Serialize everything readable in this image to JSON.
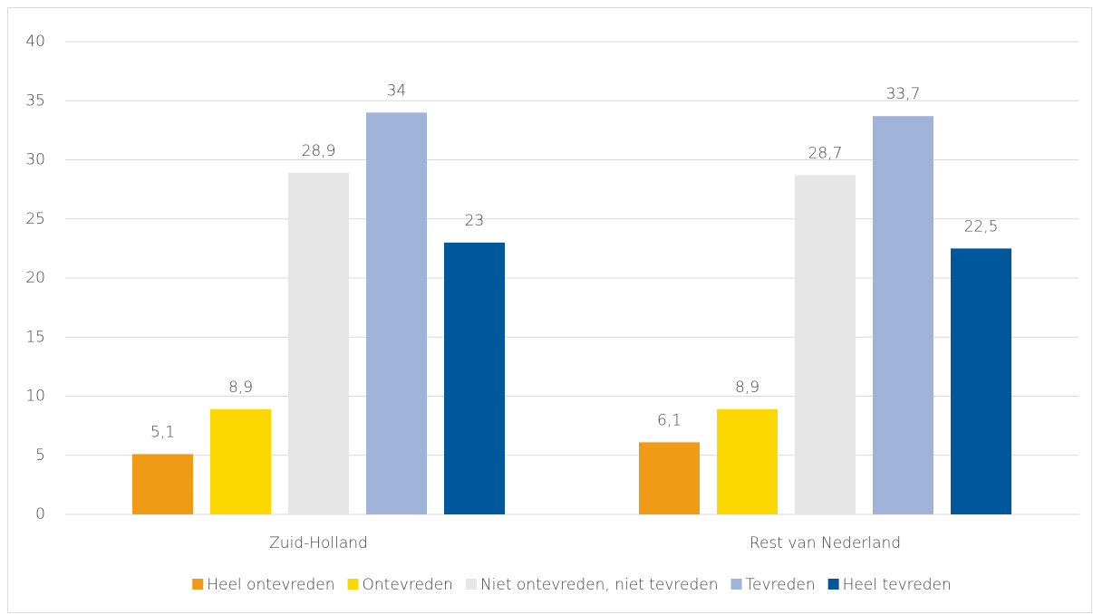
{
  "chart_data": {
    "type": "bar",
    "categories": [
      "Zuid-Holland",
      "Rest van Nederland"
    ],
    "series": [
      {
        "name": "Heel ontevreden",
        "color": "#ef9b16",
        "values": [
          5.1,
          6.1
        ],
        "value_labels": [
          "5,1",
          "6,1"
        ]
      },
      {
        "name": "Ontevreden",
        "color": "#fcd800",
        "values": [
          8.9,
          8.9
        ],
        "value_labels": [
          "8,9",
          "8,9"
        ]
      },
      {
        "name": "Niet ontevreden, niet tevreden",
        "color": "#e6e6e6",
        "values": [
          28.9,
          28.7
        ],
        "value_labels": [
          "28,9",
          "28,7"
        ]
      },
      {
        "name": "Tevreden",
        "color": "#a0b3d9",
        "values": [
          34,
          33.7
        ],
        "value_labels": [
          "34",
          "33,7"
        ]
      },
      {
        "name": "Heel tevreden",
        "color": "#00579c",
        "values": [
          23,
          22.5
        ],
        "value_labels": [
          "23",
          "22,5"
        ]
      }
    ],
    "ylim": [
      0,
      40
    ],
    "yticks": [
      0,
      5,
      10,
      15,
      20,
      25,
      30,
      35,
      40
    ],
    "grid": true,
    "legend": "bottom"
  }
}
